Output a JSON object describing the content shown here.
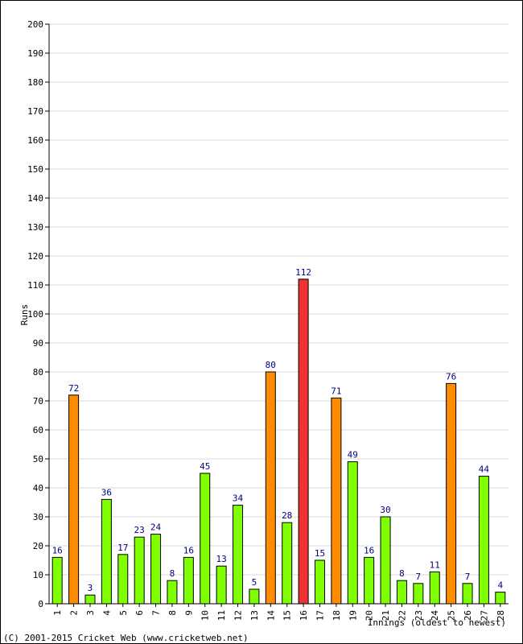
{
  "chart_data": {
    "type": "bar",
    "ylabel": "Runs",
    "xlabel": "Innings (oldest to newest)",
    "ylim": [
      0,
      200
    ],
    "ytick_step": 10,
    "grid": true,
    "categories": [
      "1",
      "2",
      "3",
      "4",
      "5",
      "6",
      "7",
      "8",
      "9",
      "10",
      "11",
      "12",
      "13",
      "14",
      "15",
      "16",
      "17",
      "18",
      "19",
      "20",
      "21",
      "22",
      "23",
      "24",
      "25",
      "26",
      "27",
      "28"
    ],
    "values": [
      16,
      72,
      3,
      36,
      17,
      23,
      24,
      8,
      16,
      45,
      13,
      34,
      5,
      80,
      28,
      112,
      15,
      71,
      49,
      16,
      30,
      8,
      7,
      11,
      76,
      7,
      44,
      4
    ],
    "colors": {
      "under_50": "#80ff00",
      "fifty": "#ff8c00",
      "hundred": "#ee3333",
      "gridline": "#d8d8d8",
      "label": "#000080"
    }
  },
  "footer": "(C) 2001-2015 Cricket Web (www.cricketweb.net)"
}
